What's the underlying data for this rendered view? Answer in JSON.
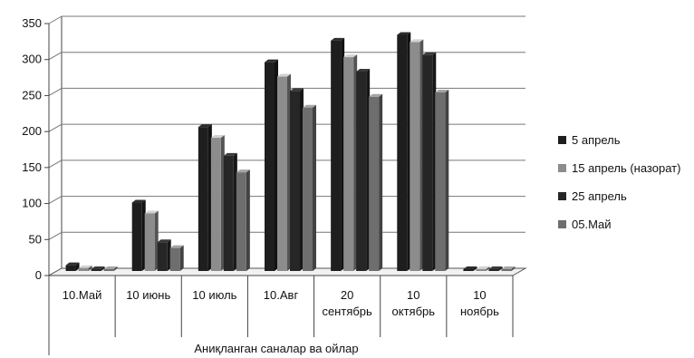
{
  "chart_data": {
    "type": "bar",
    "title": "",
    "xlabel": "Аниқланган саналар ва ойлар",
    "ylabel": "",
    "ylim": [
      0,
      350
    ],
    "yticks": [
      0,
      50,
      100,
      150,
      200,
      250,
      300,
      350
    ],
    "grid": true,
    "legend_position": "right",
    "categories": [
      [
        "10.Май"
      ],
      [
        "10 июнь"
      ],
      [
        "10 июль"
      ],
      [
        "10.Авг"
      ],
      [
        "20",
        "сентябрь"
      ],
      [
        "10",
        "октябрь"
      ],
      [
        "10",
        "ноябрь"
      ]
    ],
    "series": [
      {
        "name": "5 апрель",
        "color": "#1e1e1e",
        "values": [
          8,
          95,
          200,
          290,
          320,
          328,
          0
        ]
      },
      {
        "name": "15 апрель (назорат)",
        "color": "#8c8c8c",
        "values": [
          4,
          80,
          185,
          270,
          297,
          318,
          0
        ]
      },
      {
        "name": "25 апрель",
        "color": "#262626",
        "values": [
          1,
          40,
          160,
          250,
          277,
          300,
          0
        ]
      },
      {
        "name": "05.Май",
        "color": "#6e6e6e",
        "values": [
          1,
          32,
          137,
          227,
          242,
          248,
          0
        ]
      }
    ]
  }
}
